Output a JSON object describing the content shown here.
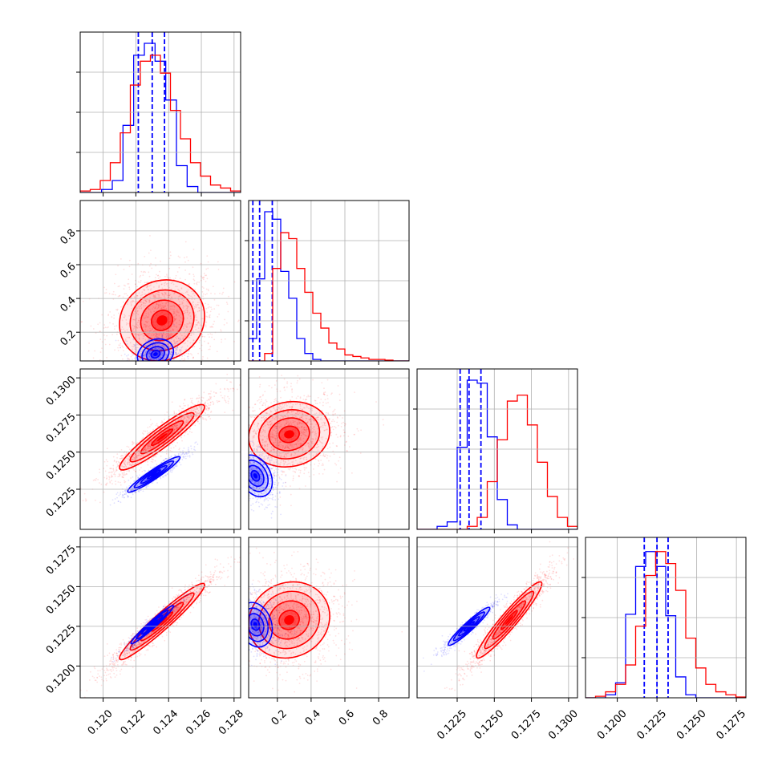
{
  "colors": {
    "blue": "#0000ff",
    "red": "#ff0000",
    "grid": "#b0b0b0",
    "axis": "#000000"
  },
  "chart_data": {
    "type": "corner",
    "params": [
      {
        "range": [
          0.1186,
          0.1284
        ],
        "ticks": [
          "0.120",
          "0.122",
          "0.124",
          "0.126",
          "0.128"
        ],
        "tickvals": [
          0.12,
          0.122,
          0.124,
          0.126,
          0.128
        ]
      },
      {
        "range": [
          0.03,
          0.98
        ],
        "ticks": [
          "0.2",
          "0.4",
          "0.6",
          "0.8"
        ],
        "tickvals": [
          0.2,
          0.4,
          0.6,
          0.8
        ]
      },
      {
        "range": [
          0.1198,
          0.1306
        ],
        "ticks": [
          "0.1225",
          "0.1250",
          "0.1275",
          "0.1300"
        ],
        "tickvals": [
          0.1225,
          0.125,
          0.1275,
          0.13
        ]
      },
      {
        "range": [
          0.118,
          0.1281
        ],
        "ticks": [
          "0.1200",
          "0.1225",
          "0.1250",
          "0.1275"
        ],
        "tickvals": [
          0.12,
          0.1225,
          0.125,
          0.1275
        ]
      }
    ],
    "series": [
      {
        "color": "blue",
        "quantiles": [
          [
            0.12215,
            0.123,
            0.12375
          ],
          [
            0.055,
            0.095,
            0.17
          ],
          [
            0.1227,
            0.1233,
            0.1241
          ],
          [
            0.1217,
            0.1225,
            0.1232
          ]
        ],
        "hist": [
          [
            0,
            0,
            0.02,
            0.08,
            0.45,
            0.92,
            1.0,
            0.88,
            0.62,
            0.18,
            0.04,
            0,
            0,
            0,
            0
          ],
          [
            0.15,
            0.55,
            1.0,
            0.95,
            0.6,
            0.42,
            0.15,
            0.05,
            0.01,
            0,
            0,
            0,
            0,
            0,
            0,
            0,
            0,
            0,
            0,
            0
          ],
          [
            0,
            0,
            0.02,
            0.05,
            0.55,
            1.0,
            0.98,
            0.62,
            0.2,
            0.03,
            0,
            0,
            0,
            0,
            0,
            0
          ],
          [
            0,
            0,
            0.02,
            0.1,
            0.56,
            0.88,
            0.98,
            0.88,
            0.55,
            0.14,
            0.02,
            0,
            0,
            0,
            0,
            0
          ]
        ],
        "blobs": {
          "1-0": {
            "mean": [
              0.1232,
              0.07
            ],
            "sd": [
              0.00055,
              0.045
            ],
            "rho": 0.2
          },
          "2-0": {
            "mean": [
              0.1231,
              0.1235
            ],
            "sd": [
              0.0008,
              0.0006
            ],
            "rho": 0.95
          },
          "2-1": {
            "mean": [
              0.07,
              0.1234
            ],
            "sd": [
              0.05,
              0.0007
            ],
            "rho": -0.3
          },
          "3-0": {
            "mean": [
              0.123,
              0.1226
            ],
            "sd": [
              0.00065,
              0.0006
            ],
            "rho": 0.97
          },
          "3-1": {
            "mean": [
              0.07,
              0.1226
            ],
            "sd": [
              0.05,
              0.0007
            ],
            "rho": -0.2
          },
          "3-2": {
            "mean": [
              0.1233,
              0.1225
            ],
            "sd": [
              0.0007,
              0.0006
            ],
            "rho": 0.95
          }
        }
      },
      {
        "color": "red",
        "quantiles": null,
        "hist": [
          [
            0.01,
            0.02,
            0.08,
            0.2,
            0.4,
            0.72,
            0.88,
            0.92,
            0.8,
            0.55,
            0.36,
            0.2,
            0.11,
            0.05,
            0.03,
            0.01
          ],
          [
            0,
            0,
            0.05,
            0.62,
            0.86,
            0.82,
            0.62,
            0.46,
            0.32,
            0.22,
            0.12,
            0.08,
            0.04,
            0.03,
            0.02,
            0.01,
            0.01,
            0.005,
            0,
            0
          ],
          [
            0,
            0,
            0,
            0,
            0,
            0.02,
            0.08,
            0.32,
            0.6,
            0.86,
            0.9,
            0.7,
            0.45,
            0.22,
            0.08,
            0.02
          ],
          [
            0,
            0.01,
            0.04,
            0.09,
            0.22,
            0.48,
            0.82,
            0.98,
            0.9,
            0.72,
            0.4,
            0.2,
            0.09,
            0.04,
            0.02,
            0.005
          ]
        ],
        "blobs": {
          "1-0": {
            "mean": [
              0.1236,
              0.27
            ],
            "sd": [
              0.0013,
              0.12
            ],
            "rho": 0.1
          },
          "2-0": {
            "mean": [
              0.1236,
              0.126
            ],
            "sd": [
              0.0013,
              0.0011
            ],
            "rho": 0.93
          },
          "2-1": {
            "mean": [
              0.27,
              0.1262
            ],
            "sd": [
              0.12,
              0.0011
            ],
            "rho": 0.1
          },
          "3-0": {
            "mean": [
              0.1236,
              0.1228
            ],
            "sd": [
              0.0013,
              0.0012
            ],
            "rho": 0.96
          },
          "3-1": {
            "mean": [
              0.27,
              0.1229
            ],
            "sd": [
              0.12,
              0.0012
            ],
            "rho": 0.1
          },
          "3-2": {
            "mean": [
              0.126,
              0.1229
            ],
            "sd": [
              0.0011,
              0.0012
            ],
            "rho": 0.95
          }
        }
      }
    ]
  }
}
